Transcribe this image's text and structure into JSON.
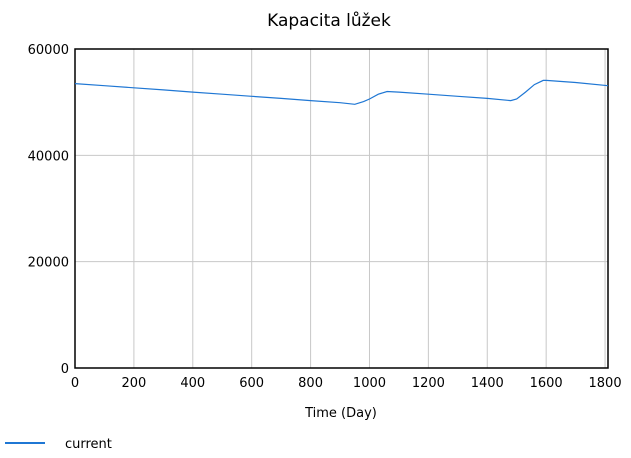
{
  "chart_data": {
    "type": "line",
    "title": "Kapacita lůžek",
    "xlabel": "Time (Day)",
    "ylabel": "",
    "xlim": [
      0,
      1810
    ],
    "ylim": [
      0,
      60000
    ],
    "x_ticks": [
      "0",
      "200",
      "400",
      "600",
      "800",
      "1000",
      "1200",
      "1400",
      "1600",
      "1800"
    ],
    "y_ticks": [
      "0",
      "20000",
      "40000",
      "60000"
    ],
    "grid": true,
    "legend_position": "bottom-left",
    "series": [
      {
        "name": "current",
        "color": "#1f77d4",
        "x": [
          0,
          100,
          200,
          300,
          400,
          500,
          600,
          700,
          800,
          900,
          950,
          980,
          1000,
          1030,
          1060,
          1100,
          1200,
          1300,
          1400,
          1480,
          1500,
          1530,
          1560,
          1590,
          1600,
          1700,
          1810
        ],
        "y": [
          53500,
          53100,
          52700,
          52300,
          51900,
          51500,
          51100,
          50700,
          50300,
          49900,
          49600,
          50100,
          50600,
          51500,
          52000,
          51900,
          51500,
          51100,
          50700,
          50300,
          50600,
          51900,
          53300,
          54100,
          54100,
          53700,
          53100
        ]
      }
    ]
  }
}
